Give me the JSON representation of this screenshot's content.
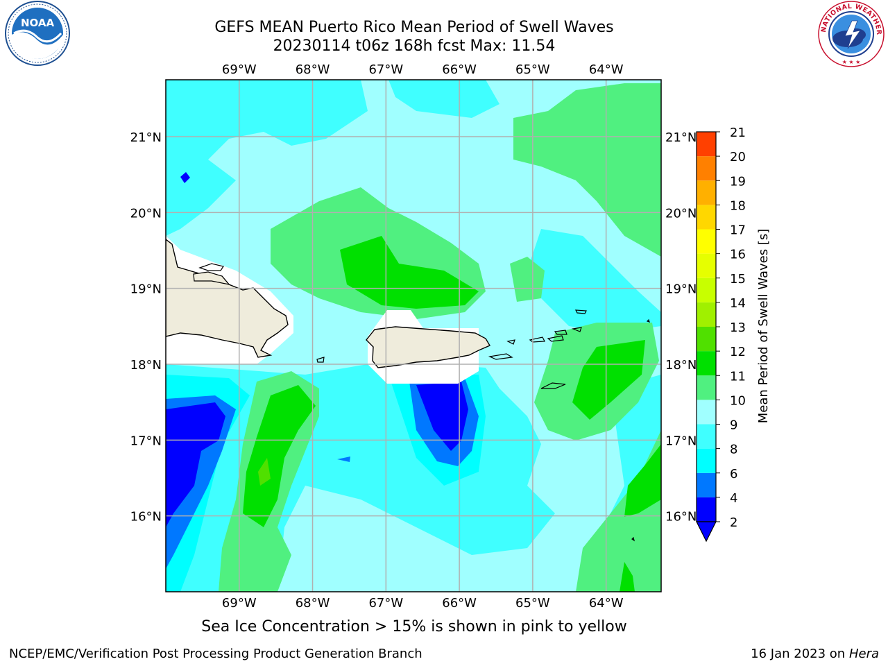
{
  "header": {
    "title_line1": "GEFS MEAN Puerto Rico Mean Period of Swell Waves",
    "title_line2": "20230114 t06z 168h fcst   Max: 11.54"
  },
  "map": {
    "lon_ticks": [
      "69°W",
      "68°W",
      "67°W",
      "66°W",
      "65°W",
      "64°W"
    ],
    "lat_ticks": [
      "21°N",
      "20°N",
      "19°N",
      "18°N",
      "17°N",
      "16°N"
    ],
    "lon_range": [
      -70.0,
      -63.25
    ],
    "lat_range": [
      15.0,
      21.75
    ],
    "land_color": "#efecdc",
    "mask_color": "#ffffff",
    "grid_color": "#b0b0b0"
  },
  "colorbar": {
    "label": "Mean Period of Swell Waves [s]",
    "levels": [
      "2",
      "4",
      "6",
      "8",
      "9",
      "10",
      "11",
      "12",
      "13",
      "14",
      "15",
      "16",
      "17",
      "18",
      "19",
      "20",
      "21"
    ],
    "colors": [
      "#0000ff",
      "#0078ff",
      "#00ffff",
      "#40ffff",
      "#a0ffff",
      "#50f080",
      "#00e000",
      "#50e000",
      "#a0f000",
      "#c8ff00",
      "#e6ff00",
      "#ffff00",
      "#ffd700",
      "#ffb000",
      "#ff8000",
      "#ff4000",
      "#ff0000"
    ],
    "extend_min_color": "#0000ff"
  },
  "subtitle": "Sea Ice Concentration > 15% is shown in pink to yellow",
  "footer": {
    "left": "NCEP/EMC/Verification Post Processing Product Generation Branch",
    "right_prefix": "16 Jan 2023 on ",
    "right_host": "Hera"
  },
  "logos": {
    "noaa_text": "NOAA",
    "nws_text": "NATIONAL WEATHER SERVICE"
  }
}
